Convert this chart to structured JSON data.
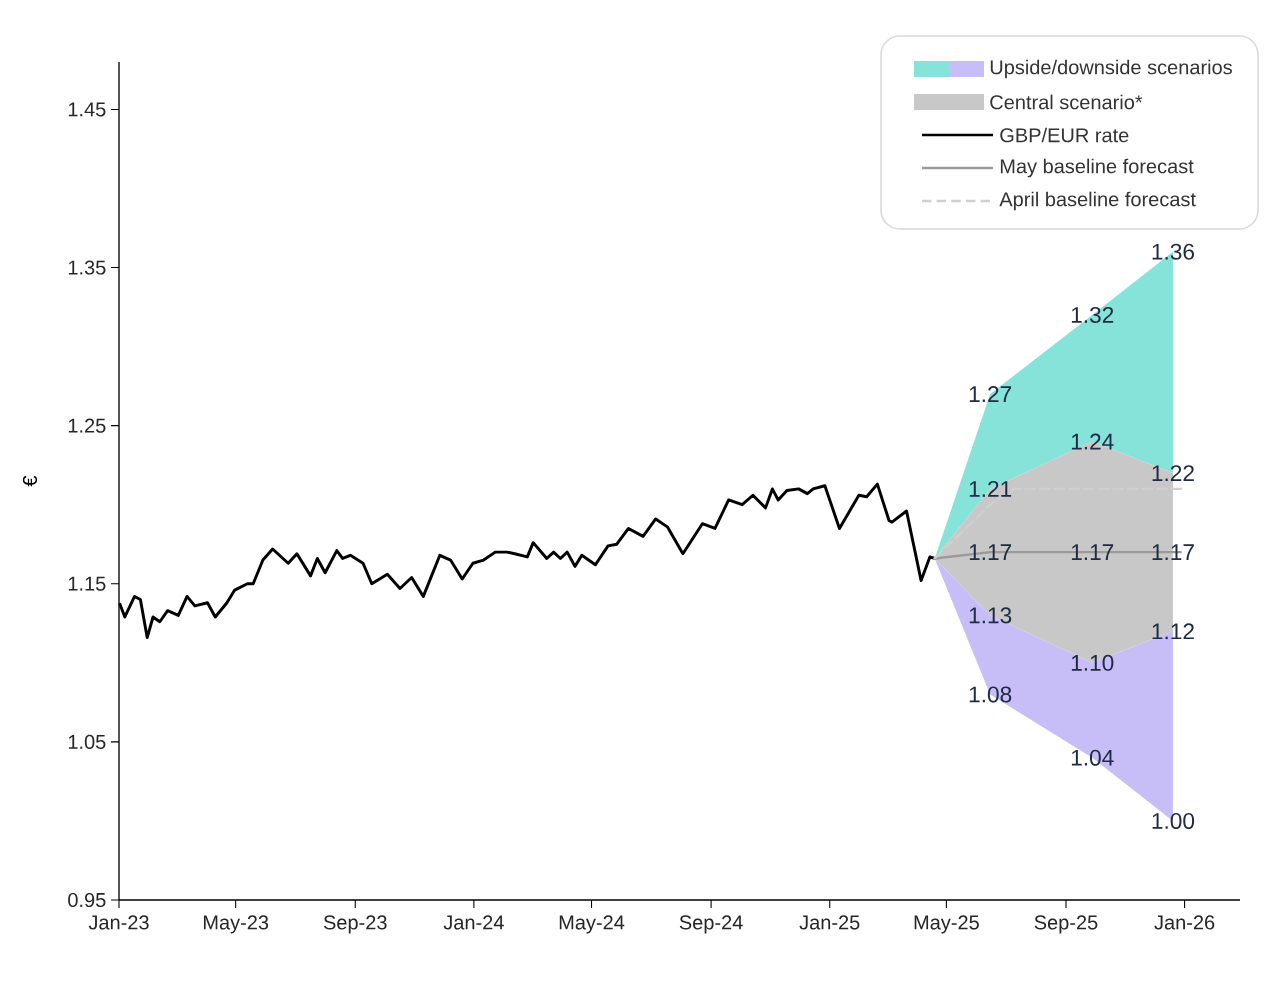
{
  "chart_data": {
    "type": "line",
    "ylabel": "€",
    "xlim": [
      "2023-01-01",
      "2026-02-27"
    ],
    "ylim": [
      0.95,
      1.48
    ],
    "xticks": [
      {
        "value": "2023-01-01",
        "label": "Jan-23"
      },
      {
        "value": "2023-05-01",
        "label": "May-23"
      },
      {
        "value": "2023-09-01",
        "label": "Sep-23"
      },
      {
        "value": "2024-01-01",
        "label": "Jan-24"
      },
      {
        "value": "2024-05-01",
        "label": "May-24"
      },
      {
        "value": "2024-09-01",
        "label": "Sep-24"
      },
      {
        "value": "2025-01-01",
        "label": "Jan-25"
      },
      {
        "value": "2025-05-01",
        "label": "May-25"
      },
      {
        "value": "2025-09-01",
        "label": "Sep-25"
      },
      {
        "value": "2026-01-01",
        "label": "Jan-26"
      }
    ],
    "yticks": [
      0.95,
      1.05,
      1.15,
      1.25,
      1.35,
      1.45
    ],
    "legend": "top right",
    "series": [
      {
        "name": "Upside/downside scenarios",
        "type": "area",
        "color": "#86e3d9",
        "x": [
          "2025-04-19",
          "2025-06-15",
          "2025-09-28",
          "2025-12-20"
        ],
        "values": [
          null,
          null,
          null,
          null
        ],
        "lower": [
          1.166,
          1.21,
          1.24,
          1.22
        ],
        "upper": [
          1.166,
          1.27,
          1.32,
          1.36
        ]
      },
      {
        "type": "area",
        "color": "#c7bdf7",
        "x": [
          "2025-04-19",
          "2025-06-15",
          "2025-09-28",
          "2025-12-20"
        ],
        "values": [
          null,
          null,
          null,
          null
        ],
        "lower": [
          1.166,
          1.08,
          1.04,
          1.0
        ],
        "upper": [
          1.166,
          1.13,
          1.1,
          1.12
        ]
      },
      {
        "name": "Central scenario*",
        "type": "area",
        "color": "#c8c8c8",
        "x": [
          "2025-04-19",
          "2025-06-15",
          "2025-09-28",
          "2025-12-20"
        ],
        "values": [
          null,
          null,
          null,
          null
        ],
        "lower": [
          1.166,
          1.13,
          1.1,
          1.12
        ],
        "upper": [
          1.166,
          1.21,
          1.24,
          1.22
        ]
      },
      {
        "name": "GBP/EUR rate",
        "color": "#000000",
        "line_style": "solid",
        "x": [
          "2023-01-02",
          "2023-01-07",
          "2023-01-17",
          "2023-01-23",
          "2023-01-30",
          "2023-02-05",
          "2023-02-12",
          "2023-02-20",
          "2023-03-03",
          "2023-03-12",
          "2023-03-20",
          "2023-04-02",
          "2023-04-10",
          "2023-04-22",
          "2023-04-30",
          "2023-05-13",
          "2023-05-19",
          "2023-05-29",
          "2023-06-08",
          "2023-06-24",
          "2023-07-03",
          "2023-07-17",
          "2023-07-24",
          "2023-08-01",
          "2023-08-13",
          "2023-08-19",
          "2023-08-27",
          "2023-09-09",
          "2023-09-18",
          "2023-10-04",
          "2023-10-17",
          "2023-10-29",
          "2023-11-10",
          "2023-11-27",
          "2023-12-08",
          "2023-12-20",
          "2023-12-31",
          "2024-01-11",
          "2024-01-23",
          "2024-02-04",
          "2024-02-12",
          "2024-02-25",
          "2024-03-02",
          "2024-03-16",
          "2024-03-23",
          "2024-03-30",
          "2024-04-06",
          "2024-04-14",
          "2024-04-21",
          "2024-05-05",
          "2024-05-18",
          "2024-05-27",
          "2024-06-08",
          "2024-06-23",
          "2024-07-06",
          "2024-07-18",
          "2024-08-03",
          "2024-08-23",
          "2024-09-05",
          "2024-09-19",
          "2024-10-03",
          "2024-10-14",
          "2024-10-27",
          "2024-11-03",
          "2024-11-09",
          "2024-11-18",
          "2024-11-30",
          "2024-12-09",
          "2024-12-15",
          "2024-12-27",
          "2025-01-11",
          "2025-01-31",
          "2025-02-08",
          "2025-02-19",
          "2025-03-03",
          "2025-03-06",
          "2025-03-21",
          "2025-04-05",
          "2025-04-14",
          "2025-04-19"
        ],
        "values": [
          1.137,
          1.129,
          1.142,
          1.14,
          1.116,
          1.129,
          1.126,
          1.133,
          1.13,
          1.142,
          1.136,
          1.138,
          1.129,
          1.138,
          1.146,
          1.15,
          1.15,
          1.165,
          1.172,
          1.163,
          1.169,
          1.155,
          1.166,
          1.157,
          1.171,
          1.166,
          1.168,
          1.163,
          1.15,
          1.156,
          1.147,
          1.154,
          1.142,
          1.168,
          1.165,
          1.153,
          1.163,
          1.165,
          1.17,
          1.17,
          1.169,
          1.167,
          1.176,
          1.166,
          1.17,
          1.166,
          1.17,
          1.161,
          1.168,
          1.162,
          1.174,
          1.175,
          1.185,
          1.18,
          1.191,
          1.186,
          1.169,
          1.188,
          1.185,
          1.203,
          1.2,
          1.206,
          1.198,
          1.21,
          1.203,
          1.209,
          1.21,
          1.207,
          1.21,
          1.212,
          1.185,
          1.206,
          1.205,
          1.213,
          1.19,
          1.189,
          1.196,
          1.152,
          1.167,
          1.166
        ]
      },
      {
        "name": "May baseline forecast",
        "color": "#9a9a9a",
        "line_style": "solid",
        "x": [
          "2025-04-19",
          "2025-06-15",
          "2025-09-28",
          "2025-12-28"
        ],
        "values": [
          1.166,
          1.17,
          1.17,
          1.17
        ]
      },
      {
        "name": "April baseline forecast",
        "color": "#cfcfcf",
        "line_style": "dashed",
        "x": [
          "2025-04-19",
          "2025-06-15",
          "2025-07-10",
          "2025-09-28",
          "2025-12-28"
        ],
        "values": [
          1.166,
          1.2,
          1.21,
          1.21,
          1.21
        ]
      }
    ],
    "annotations": [
      {
        "text": "1.36",
        "x": "2025-12-20",
        "y": 1.36
      },
      {
        "text": "1.32",
        "x": "2025-09-28",
        "y": 1.32
      },
      {
        "text": "1.27",
        "x": "2025-06-15",
        "y": 1.27
      },
      {
        "text": "1.24",
        "x": "2025-09-28",
        "y": 1.24
      },
      {
        "text": "1.22",
        "x": "2025-12-20",
        "y": 1.22
      },
      {
        "text": "1.21",
        "x": "2025-06-15",
        "y": 1.21
      },
      {
        "text": "1.17",
        "x": "2025-06-15",
        "y": 1.17
      },
      {
        "text": "1.17",
        "x": "2025-09-28",
        "y": 1.17
      },
      {
        "text": "1.17",
        "x": "2025-12-20",
        "y": 1.17
      },
      {
        "text": "1.13",
        "x": "2025-06-15",
        "y": 1.13
      },
      {
        "text": "1.10",
        "x": "2025-09-28",
        "y": 1.1
      },
      {
        "text": "1.12",
        "x": "2025-12-20",
        "y": 1.12
      },
      {
        "text": "1.08",
        "x": "2025-06-15",
        "y": 1.08
      },
      {
        "text": "1.04",
        "x": "2025-09-28",
        "y": 1.04
      },
      {
        "text": "1.00",
        "x": "2025-12-20",
        "y": 1.0
      }
    ]
  }
}
